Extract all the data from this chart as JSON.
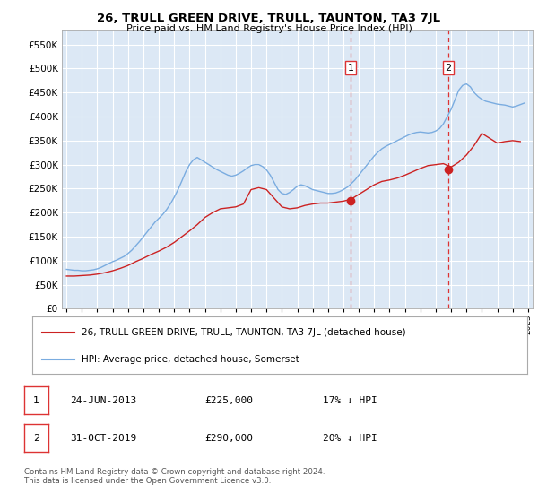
{
  "title": "26, TRULL GREEN DRIVE, TRULL, TAUNTON, TA3 7JL",
  "subtitle": "Price paid vs. HM Land Registry's House Price Index (HPI)",
  "ylim": [
    0,
    580000
  ],
  "yticks": [
    0,
    50000,
    100000,
    150000,
    200000,
    250000,
    300000,
    350000,
    400000,
    450000,
    500000,
    550000
  ],
  "xlim_start": 1994.7,
  "xlim_end": 2025.3,
  "plot_bg_color": "#dce8f5",
  "grid_color": "#ffffff",
  "hpi_color": "#7aace0",
  "price_color": "#cc2222",
  "marker_color": "#cc2222",
  "vline_color": "#dd3333",
  "hpi_data_x": [
    1995.0,
    1995.25,
    1995.5,
    1995.75,
    1996.0,
    1996.25,
    1996.5,
    1996.75,
    1997.0,
    1997.25,
    1997.5,
    1997.75,
    1998.0,
    1998.25,
    1998.5,
    1998.75,
    1999.0,
    1999.25,
    1999.5,
    1999.75,
    2000.0,
    2000.25,
    2000.5,
    2000.75,
    2001.0,
    2001.25,
    2001.5,
    2001.75,
    2002.0,
    2002.25,
    2002.5,
    2002.75,
    2003.0,
    2003.25,
    2003.5,
    2003.75,
    2004.0,
    2004.25,
    2004.5,
    2004.75,
    2005.0,
    2005.25,
    2005.5,
    2005.75,
    2006.0,
    2006.25,
    2006.5,
    2006.75,
    2007.0,
    2007.25,
    2007.5,
    2007.75,
    2008.0,
    2008.25,
    2008.5,
    2008.75,
    2009.0,
    2009.25,
    2009.5,
    2009.75,
    2010.0,
    2010.25,
    2010.5,
    2010.75,
    2011.0,
    2011.25,
    2011.5,
    2011.75,
    2012.0,
    2012.25,
    2012.5,
    2012.75,
    2013.0,
    2013.25,
    2013.5,
    2013.75,
    2014.0,
    2014.25,
    2014.5,
    2014.75,
    2015.0,
    2015.25,
    2015.5,
    2015.75,
    2016.0,
    2016.25,
    2016.5,
    2016.75,
    2017.0,
    2017.25,
    2017.5,
    2017.75,
    2018.0,
    2018.25,
    2018.5,
    2018.75,
    2019.0,
    2019.25,
    2019.5,
    2019.75,
    2020.0,
    2020.25,
    2020.5,
    2020.75,
    2021.0,
    2021.25,
    2021.5,
    2021.75,
    2022.0,
    2022.25,
    2022.5,
    2022.75,
    2023.0,
    2023.25,
    2023.5,
    2023.75,
    2024.0,
    2024.25,
    2024.5,
    2024.75
  ],
  "hpi_data_y": [
    82000,
    81000,
    80000,
    80000,
    79000,
    79000,
    80000,
    81000,
    83000,
    86000,
    90000,
    94000,
    98000,
    101000,
    105000,
    109000,
    115000,
    122000,
    131000,
    140000,
    150000,
    160000,
    170000,
    180000,
    188000,
    196000,
    206000,
    218000,
    232000,
    248000,
    266000,
    285000,
    300000,
    310000,
    315000,
    310000,
    305000,
    300000,
    295000,
    290000,
    286000,
    282000,
    278000,
    276000,
    278000,
    282000,
    287000,
    293000,
    298000,
    300000,
    300000,
    296000,
    289000,
    278000,
    263000,
    248000,
    240000,
    238000,
    242000,
    248000,
    255000,
    258000,
    256000,
    252000,
    248000,
    246000,
    244000,
    242000,
    240000,
    240000,
    241000,
    244000,
    248000,
    253000,
    260000,
    268000,
    278000,
    288000,
    298000,
    308000,
    318000,
    326000,
    333000,
    338000,
    342000,
    346000,
    350000,
    354000,
    358000,
    362000,
    365000,
    367000,
    368000,
    367000,
    366000,
    367000,
    370000,
    375000,
    385000,
    400000,
    415000,
    435000,
    455000,
    465000,
    468000,
    462000,
    450000,
    442000,
    436000,
    432000,
    430000,
    428000,
    426000,
    425000,
    424000,
    422000,
    420000,
    422000,
    425000,
    428000
  ],
  "price_data_x": [
    1995.0,
    1995.5,
    1996.0,
    1996.5,
    1997.0,
    1997.5,
    1998.0,
    1998.5,
    1999.0,
    1999.5,
    2000.0,
    2000.5,
    2001.0,
    2001.5,
    2002.0,
    2002.5,
    2003.0,
    2003.5,
    2004.0,
    2004.5,
    2005.0,
    2005.5,
    2006.0,
    2006.5,
    2007.0,
    2007.5,
    2008.0,
    2008.5,
    2009.0,
    2009.5,
    2010.0,
    2010.5,
    2011.0,
    2011.5,
    2012.0,
    2012.5,
    2013.0,
    2013.5,
    2014.0,
    2014.5,
    2015.0,
    2015.5,
    2016.0,
    2016.5,
    2017.0,
    2017.5,
    2018.0,
    2018.5,
    2019.0,
    2019.5,
    2020.0,
    2020.5,
    2021.0,
    2021.5,
    2022.0,
    2022.5,
    2023.0,
    2023.5,
    2024.0,
    2024.5
  ],
  "price_data_y": [
    68000,
    68000,
    69000,
    70000,
    72000,
    75000,
    79000,
    84000,
    90000,
    98000,
    105000,
    113000,
    120000,
    128000,
    138000,
    150000,
    162000,
    175000,
    190000,
    200000,
    208000,
    210000,
    212000,
    218000,
    248000,
    252000,
    248000,
    230000,
    212000,
    208000,
    210000,
    215000,
    218000,
    220000,
    220000,
    222000,
    224000,
    228000,
    238000,
    248000,
    258000,
    265000,
    268000,
    272000,
    278000,
    285000,
    292000,
    298000,
    300000,
    302000,
    295000,
    305000,
    320000,
    340000,
    365000,
    355000,
    345000,
    348000,
    350000,
    348000
  ],
  "sale1_x": 2013.48,
  "sale1_y": 225000,
  "sale2_x": 2019.83,
  "sale2_y": 290000,
  "sale1_label": "1",
  "sale2_label": "2",
  "legend_line1": "26, TRULL GREEN DRIVE, TRULL, TAUNTON, TA3 7JL (detached house)",
  "legend_line2": "HPI: Average price, detached house, Somerset",
  "ann_rows": [
    {
      "num": "1",
      "date": "24-JUN-2013",
      "price": "£225,000",
      "hpi": "17% ↓ HPI"
    },
    {
      "num": "2",
      "date": "31-OCT-2019",
      "price": "£290,000",
      "hpi": "20% ↓ HPI"
    }
  ],
  "footnote": "Contains HM Land Registry data © Crown copyright and database right 2024.\nThis data is licensed under the Open Government Licence v3.0."
}
